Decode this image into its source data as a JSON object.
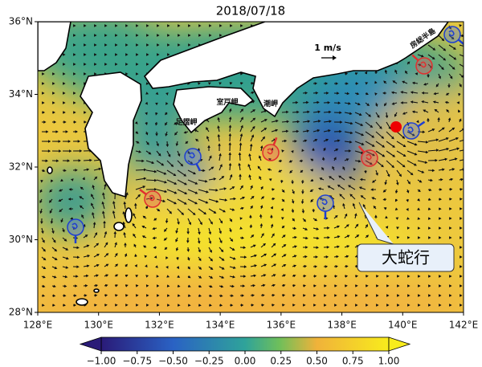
{
  "map": {
    "title": "2018/07/18",
    "lonlim": [
      128,
      142
    ],
    "latlim": [
      28,
      36
    ],
    "lon_ticks": [
      {
        "value": 128,
        "label": "128°E"
      },
      {
        "value": 130,
        "label": "130°E"
      },
      {
        "value": 132,
        "label": "132°E"
      },
      {
        "value": 134,
        "label": "134°E"
      },
      {
        "value": 136,
        "label": "136°E"
      },
      {
        "value": 138,
        "label": "138°E"
      },
      {
        "value": 140,
        "label": "140°E"
      },
      {
        "value": 142,
        "label": "142°E"
      }
    ],
    "lat_ticks": [
      {
        "value": 28,
        "label": "28°N"
      },
      {
        "value": 30,
        "label": "30°N"
      },
      {
        "value": 32,
        "label": "32°N"
      },
      {
        "value": 34,
        "label": "34°N"
      },
      {
        "value": 36,
        "label": "36°N"
      }
    ],
    "colorbar": {
      "lim": [
        -1,
        1
      ],
      "ticks": [
        {
          "value": -1,
          "label": "−1.00"
        },
        {
          "value": -0.75,
          "label": "−0.75"
        },
        {
          "value": -0.5,
          "label": "−0.50"
        },
        {
          "value": -0.25,
          "label": "−0.25"
        },
        {
          "value": 0,
          "label": "0.00"
        },
        0.25,
        {
          "value": 0.5,
          "label": "0.50"
        },
        0.75,
        {
          "value": 1,
          "label": "1.00"
        }
      ]
    },
    "scale_label": "1 m/s",
    "places": [
      "足摺岬",
      "室戸岬",
      "潮岬",
      "房総半島"
    ],
    "callout": "大蛇行"
  }
}
